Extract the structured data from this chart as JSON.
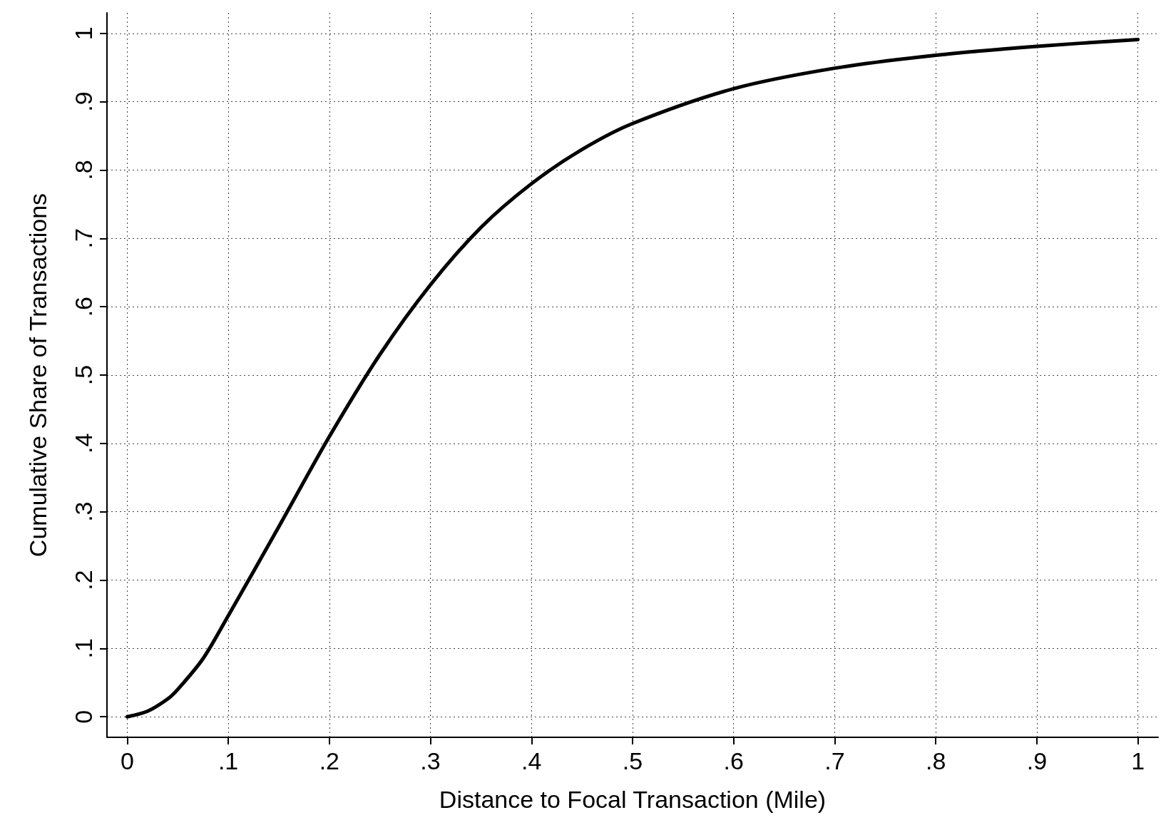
{
  "chart_data": {
    "type": "line",
    "xlabel": "Distance to Focal Transaction (Mile)",
    "ylabel": "Cumulative Share of Transactions",
    "x": [
      0,
      0.02,
      0.04,
      0.05,
      0.075,
      0.1,
      0.15,
      0.2,
      0.25,
      0.3,
      0.35,
      0.4,
      0.45,
      0.5,
      0.6,
      0.7,
      0.8,
      0.9,
      1.0
    ],
    "series": [
      {
        "color": "#000000",
        "values": [
          0,
          0.008,
          0.026,
          0.04,
          0.085,
          0.148,
          0.278,
          0.41,
          0.53,
          0.632,
          0.716,
          0.78,
          0.83,
          0.868,
          0.919,
          0.949,
          0.968,
          0.981,
          0.991
        ]
      }
    ],
    "xlim": [
      -0.02,
      1.02
    ],
    "ylim": [
      -0.03,
      1.03
    ],
    "xticks": [
      0,
      {
        "value": 0.1,
        "label": ".1"
      },
      {
        "value": 0.2,
        "label": ".2"
      },
      {
        "value": 0.3,
        "label": ".3"
      },
      {
        "value": 0.4,
        "label": ".4"
      },
      {
        "value": 0.5,
        "label": ".5"
      },
      {
        "value": 0.6,
        "label": ".6"
      },
      {
        "value": 0.7,
        "label": ".7"
      },
      {
        "value": 0.8,
        "label": ".8"
      },
      {
        "value": 0.9,
        "label": ".9"
      },
      1
    ],
    "yticks": [
      0,
      {
        "value": 0.1,
        "label": ".1"
      },
      {
        "value": 0.2,
        "label": ".2"
      },
      {
        "value": 0.3,
        "label": ".3"
      },
      {
        "value": 0.4,
        "label": ".4"
      },
      {
        "value": 0.5,
        "label": ".5"
      },
      {
        "value": 0.6,
        "label": ".6"
      },
      {
        "value": 0.7,
        "label": ".7"
      },
      {
        "value": 0.8,
        "label": ".8"
      },
      {
        "value": 0.9,
        "label": ".9"
      },
      1
    ],
    "grid": true,
    "marker": "none",
    "line_style": "solid"
  }
}
